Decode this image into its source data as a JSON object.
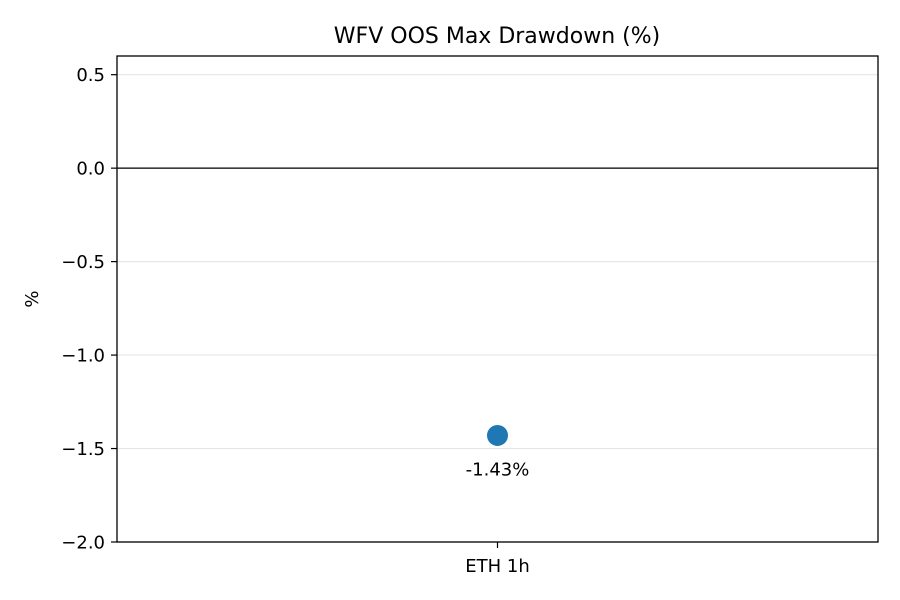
{
  "chart_data": {
    "type": "scatter",
    "title": "WFV OOS Max Drawdown (%)",
    "xlabel": "",
    "ylabel": "%",
    "categories": [
      "ETH 1h"
    ],
    "series": [
      {
        "values": [
          -1.43
        ],
        "data_labels": [
          "-1.43%"
        ],
        "color": "#1f77b4"
      }
    ],
    "ylim": [
      -2.0,
      0.6
    ],
    "yticks": [
      0.5,
      0.0,
      -0.5,
      -1.0,
      -1.5,
      -2.0
    ],
    "ytick_labels": [
      "0.5",
      "0.0",
      "−0.5",
      "−1.0",
      "−1.5",
      "−2.0"
    ],
    "reference_line_y": 0.0,
    "grid": "y-only",
    "legend": "none"
  }
}
